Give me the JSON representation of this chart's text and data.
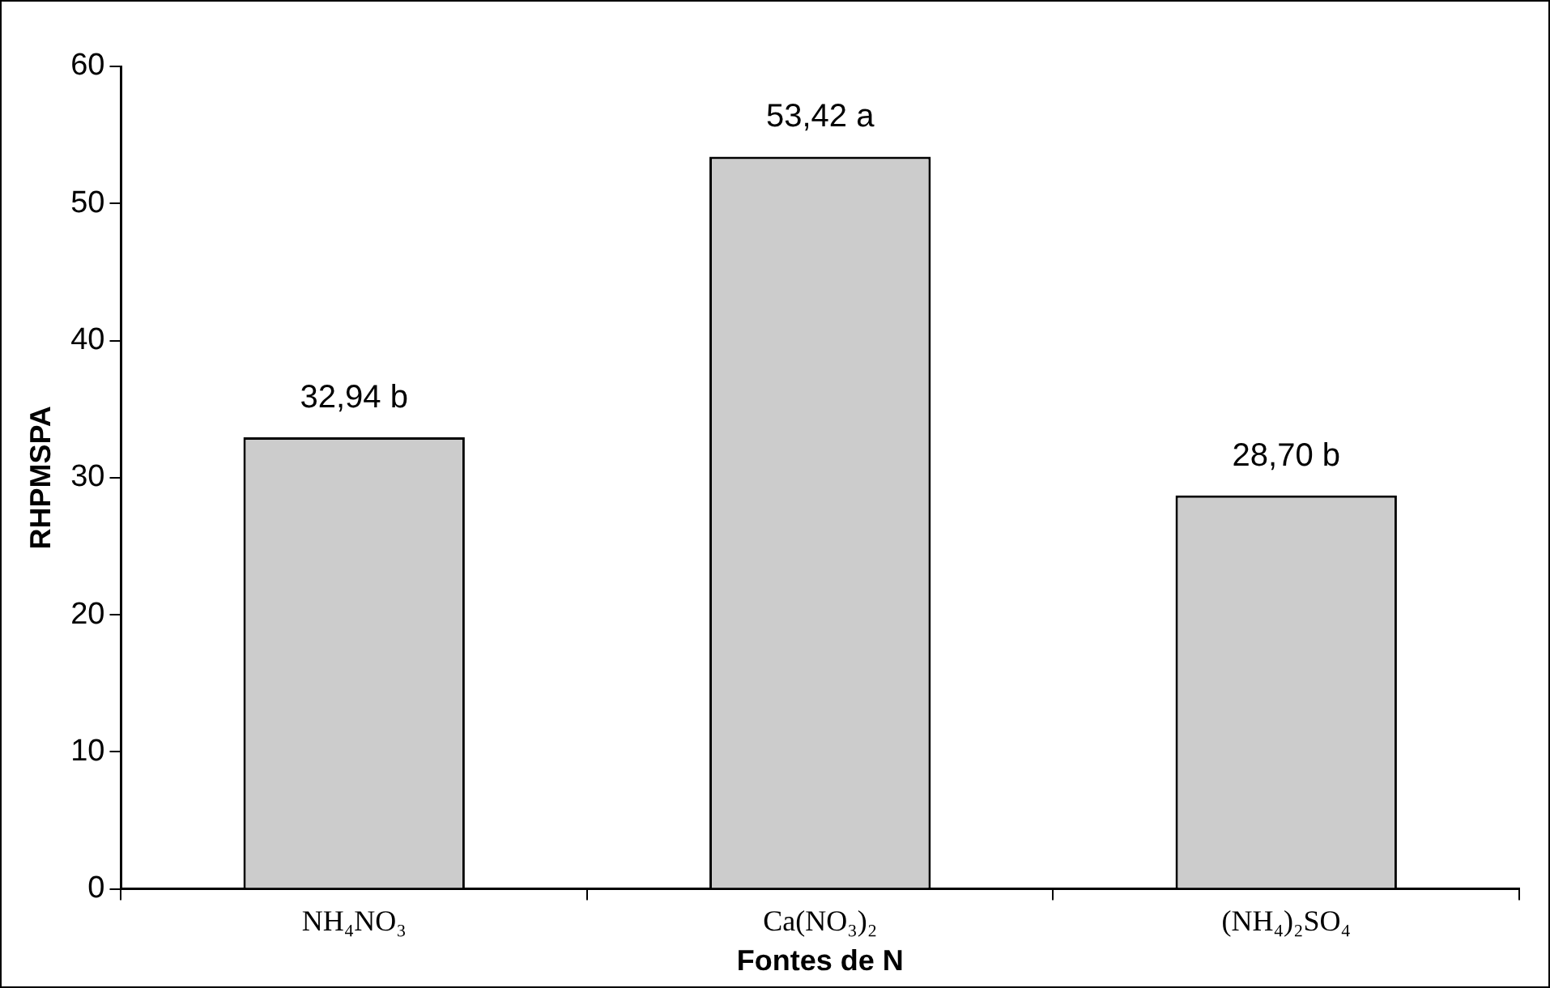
{
  "chart_data": {
    "type": "bar",
    "xlabel": "Fontes de N",
    "ylabel": "RHPMSPA",
    "categories": [
      "NH₄NO₃",
      "Ca(NO₃)₂",
      "(NH₄)₂SO₄"
    ],
    "values": [
      32.94,
      53.42,
      28.7
    ],
    "value_labels": [
      "32,94 b",
      "53,42 a",
      "28,70 b"
    ],
    "color": "#cccccc",
    "ylim": [
      0,
      60
    ],
    "yticks": [
      0,
      10,
      20,
      30,
      40,
      50,
      60
    ],
    "grid": false,
    "legend": false
  }
}
